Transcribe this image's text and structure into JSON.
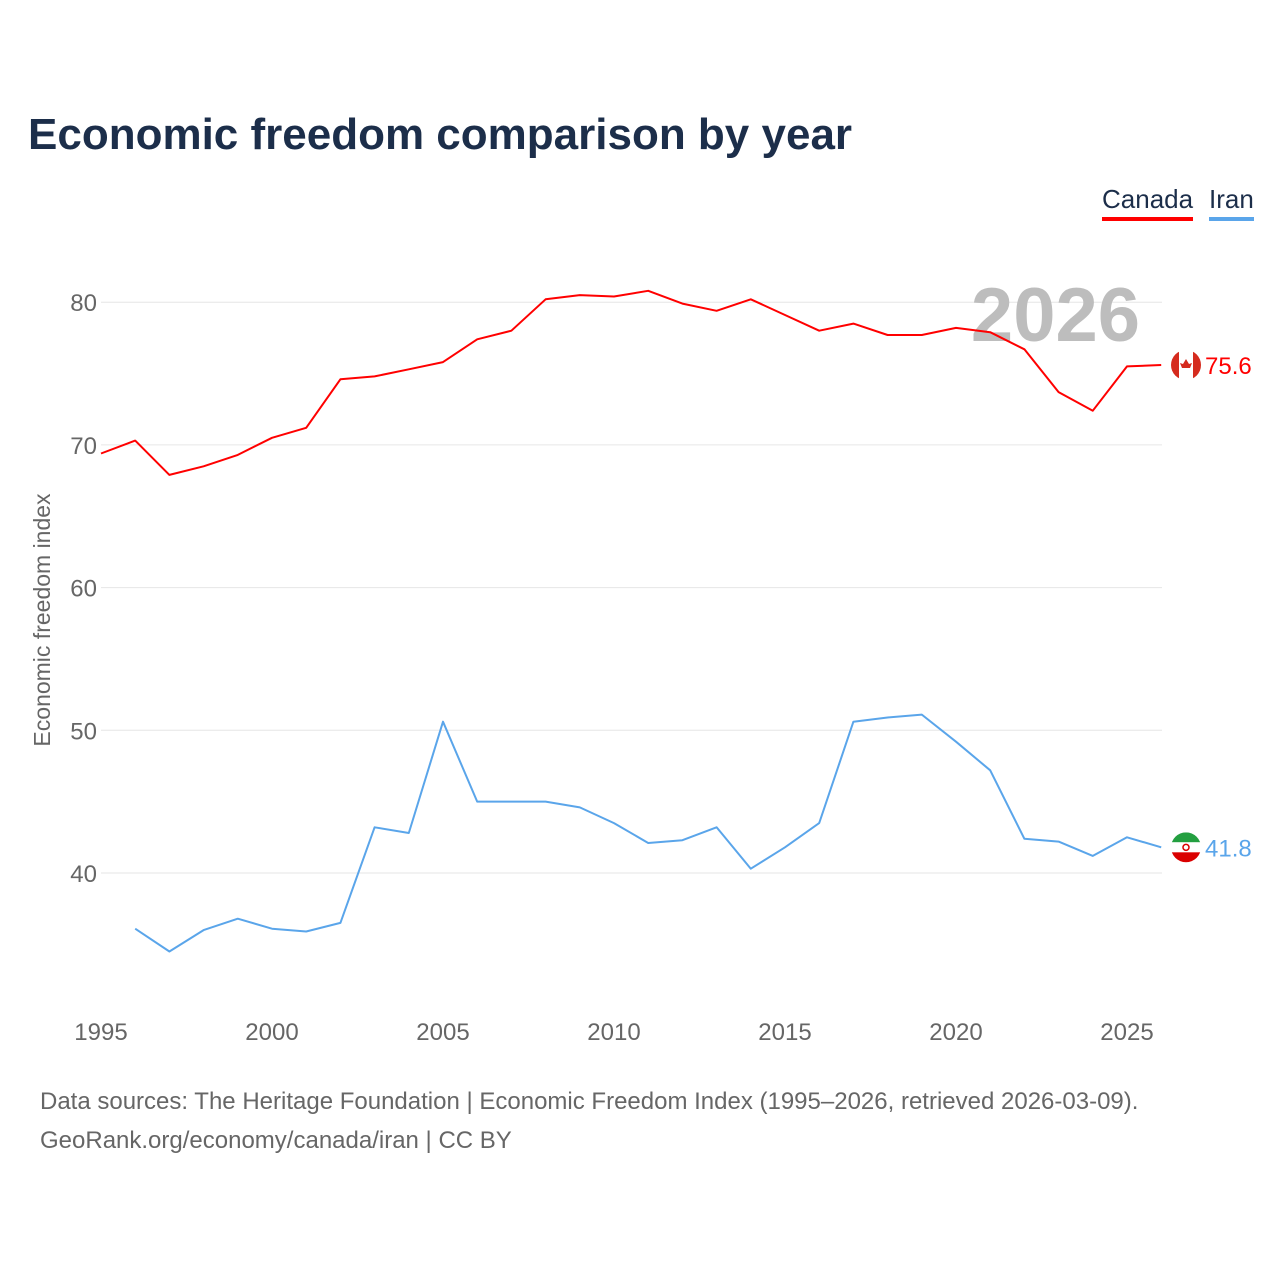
{
  "chart_data": {
    "type": "line",
    "title": "Economic freedom comparison by year",
    "xlabel": "",
    "ylabel": "Economic freedom index",
    "xlim": [
      1995,
      2026
    ],
    "ylim": [
      31,
      84
    ],
    "xticks": [
      1995,
      2000,
      2005,
      2010,
      2015,
      2020,
      2025
    ],
    "yticks": [
      40,
      50,
      60,
      70,
      80
    ],
    "grid": true,
    "legend_position": "top-right",
    "year_label": "2026",
    "series": [
      {
        "name": "Canada",
        "color": "#ff0000",
        "end_label": "75.6",
        "flag": "canada-flag-icon",
        "x": [
          1995,
          1996,
          1997,
          1998,
          1999,
          2000,
          2001,
          2002,
          2003,
          2004,
          2005,
          2006,
          2007,
          2008,
          2009,
          2010,
          2011,
          2012,
          2013,
          2014,
          2015,
          2016,
          2017,
          2018,
          2019,
          2020,
          2021,
          2022,
          2023,
          2024,
          2025,
          2026
        ],
        "values": [
          69.4,
          70.3,
          67.9,
          68.5,
          69.3,
          70.5,
          71.2,
          74.6,
          74.8,
          75.3,
          75.8,
          77.4,
          78.0,
          80.2,
          80.5,
          80.4,
          80.8,
          79.9,
          79.4,
          80.2,
          79.1,
          78.0,
          78.5,
          77.7,
          77.7,
          78.2,
          77.9,
          76.7,
          73.7,
          72.4,
          75.5,
          75.6
        ]
      },
      {
        "name": "Iran",
        "color": "#5aa5ea",
        "end_label": "41.8",
        "flag": "iran-flag-icon",
        "x": [
          1996,
          1997,
          1998,
          1999,
          2000,
          2001,
          2002,
          2003,
          2004,
          2005,
          2006,
          2007,
          2008,
          2009,
          2010,
          2011,
          2012,
          2013,
          2014,
          2015,
          2016,
          2017,
          2018,
          2019,
          2020,
          2021,
          2022,
          2023,
          2024,
          2025,
          2026
        ],
        "values": [
          36.1,
          34.5,
          36.0,
          36.8,
          36.1,
          35.9,
          36.5,
          43.2,
          42.8,
          50.6,
          45.0,
          45.0,
          45.0,
          44.6,
          43.5,
          42.1,
          42.3,
          43.2,
          40.3,
          41.8,
          43.5,
          50.6,
          50.9,
          51.1,
          49.2,
          47.2,
          42.4,
          42.2,
          41.2,
          42.5,
          41.8
        ]
      }
    ]
  },
  "footer": {
    "sources": "Data sources: The Heritage Foundation | Economic Freedom Index (1995–2026, retrieved 2026-03-09).",
    "attribution": "GeoRank.org/economy/canada/iran | CC BY"
  }
}
